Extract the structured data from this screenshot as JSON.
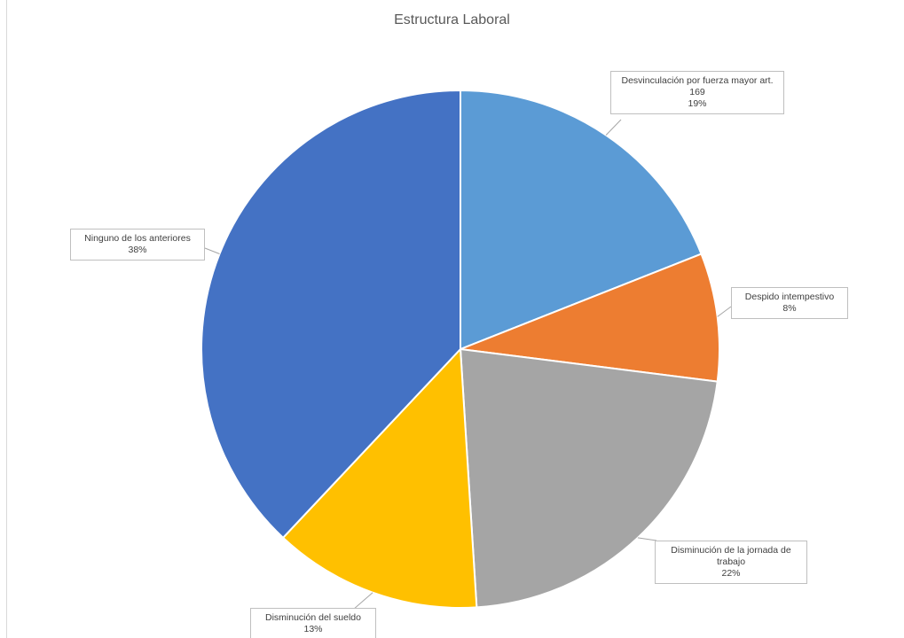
{
  "chart_data": {
    "type": "pie",
    "title": "Estructura Laboral",
    "slices": [
      {
        "label": "Desvinculación por fuerza mayor art. 169",
        "value": 19,
        "display": "19%",
        "color": "#5B9BD5"
      },
      {
        "label": "Despido intempestivo",
        "value": 8,
        "display": "8%",
        "color": "#ED7D31"
      },
      {
        "label": "Disminución de la jornada de trabajo",
        "value": 22,
        "display": "22%",
        "color": "#A5A5A5"
      },
      {
        "label": "Disminución del sueldo",
        "value": 13,
        "display": "13%",
        "color": "#FFC000"
      },
      {
        "label": "Ninguno de los anteriores",
        "value": 38,
        "display": "38%",
        "color": "#4472C4"
      }
    ],
    "legend": "none",
    "data_labels": "callouts with category name and percentage"
  }
}
